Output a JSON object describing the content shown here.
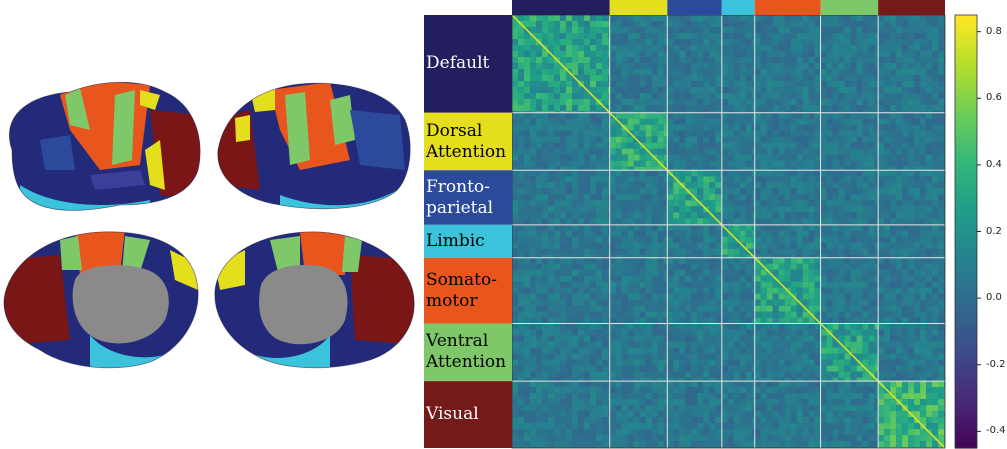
{
  "figure": {
    "networks": [
      {
        "label": "Default",
        "color": "#231f5e",
        "text_color": "#ffffff",
        "size": 95
      },
      {
        "label": "Dorsal\nAttention",
        "color": "#e5de1c",
        "text_color": "#000000",
        "size": 56
      },
      {
        "label": "Fronto-\nparietal",
        "color": "#2c4a9b",
        "text_color": "#ffffff",
        "size": 53
      },
      {
        "label": "Limbic",
        "color": "#3cc3dc",
        "text_color": "#000000",
        "size": 32
      },
      {
        "label": "Somato-\nmotor",
        "color": "#e8561d",
        "text_color": "#000000",
        "size": 64
      },
      {
        "label": "Ventral\nAttention",
        "color": "#7ec86a",
        "text_color": "#000000",
        "size": 56
      },
      {
        "label": "Visual",
        "color": "#741a18",
        "text_color": "#ffffff",
        "size": 65
      }
    ],
    "colorbar": {
      "colormap": "viridis",
      "min": -0.45,
      "max": 0.85,
      "ticks": [
        "0.8",
        "0.6",
        "0.4",
        "0.2",
        "0.0",
        "-0.2",
        "-0.4"
      ],
      "tick_values": [
        0.8,
        0.6,
        0.4,
        0.2,
        0.0,
        -0.2,
        -0.4
      ]
    },
    "brain_views": [
      "lateral-left",
      "lateral-right",
      "medial-left",
      "medial-right"
    ]
  }
}
